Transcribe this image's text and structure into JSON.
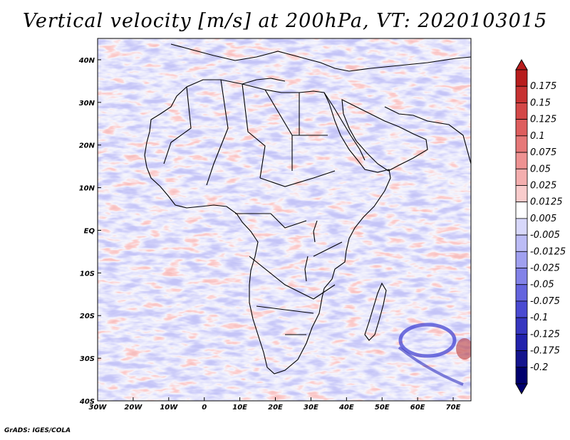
{
  "title": "Vertical velocity [m/s] at 200hPa, VT: 2020103015",
  "footer": "GrADS: IGES/COLA",
  "map": {
    "lon_labels": [
      "30W",
      "20W",
      "10W",
      "0",
      "10E",
      "20E",
      "30E",
      "40E",
      "50E",
      "60E",
      "70E"
    ],
    "lat_labels": [
      "40N",
      "30N",
      "20N",
      "10N",
      "EQ",
      "10S",
      "20S",
      "30S",
      "40S"
    ],
    "lon_range": [
      -30,
      75
    ],
    "lat_range": [
      -40,
      45
    ]
  },
  "colorbar": {
    "labels": [
      "0.175",
      "0.15",
      "0.125",
      "0.1",
      "0.075",
      "0.05",
      "0.025",
      "0.0125",
      "0.005",
      "-0.005",
      "-0.0125",
      "-0.025",
      "-0.05",
      "-0.075",
      "-0.1",
      "-0.125",
      "-0.175",
      "-0.2"
    ],
    "colors": [
      "#b81d1d",
      "#c73232",
      "#d44848",
      "#de5e5e",
      "#e67878",
      "#ee9292",
      "#f4aeae",
      "#f9cccc",
      "#ffffff",
      "#d8d8fb",
      "#bcbcf6",
      "#a0a0f0",
      "#8282e8",
      "#6464de",
      "#4a4ad2",
      "#3636c0",
      "#2222ac",
      "#14148e",
      "#00006e"
    ]
  }
}
